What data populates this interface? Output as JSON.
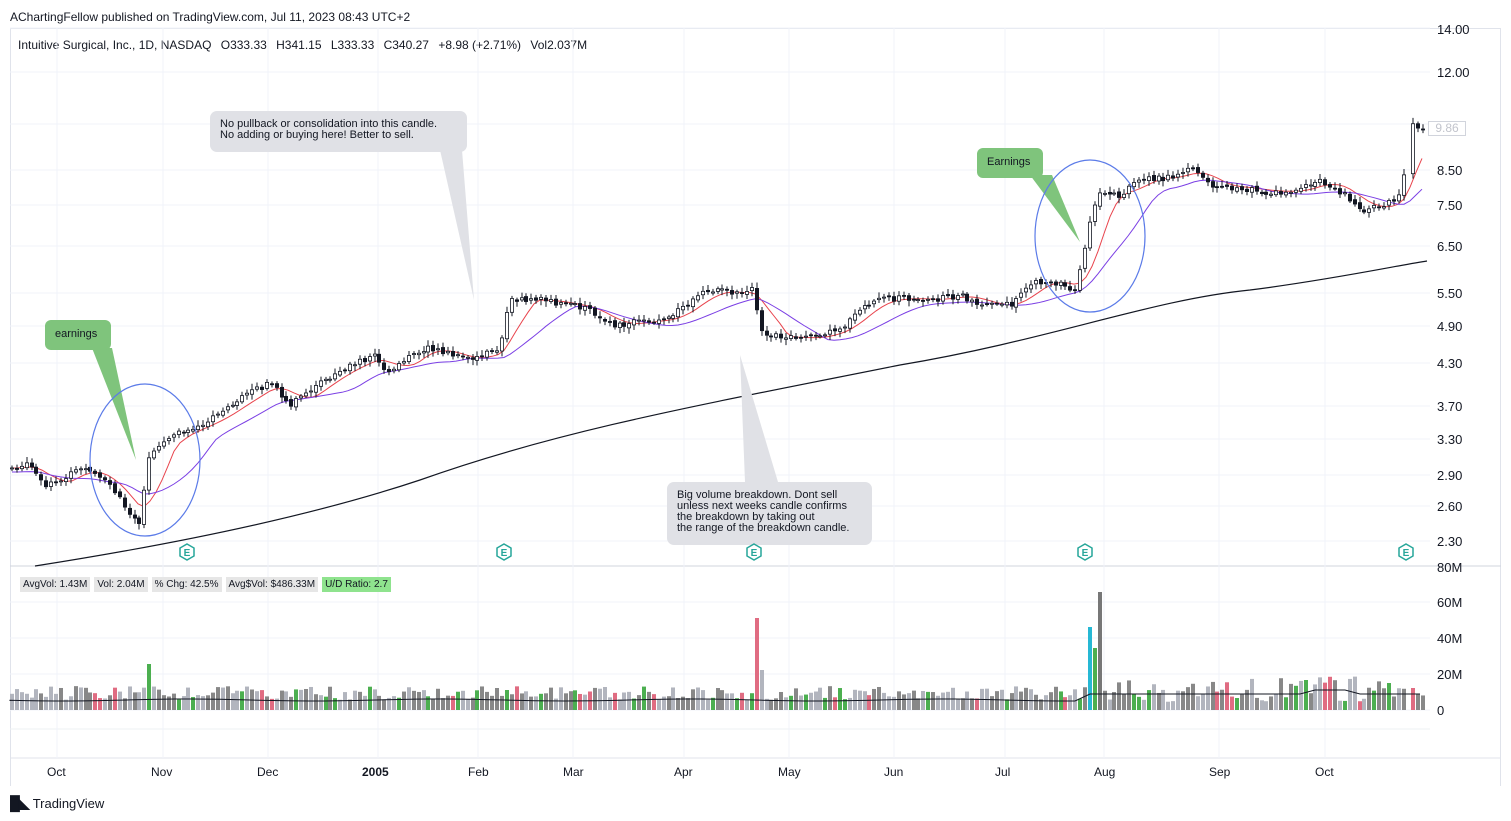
{
  "publisher_line": "AChartingFellow published on TradingView.com, Jul 11, 2023 08:43 UTC+2",
  "symbol": {
    "name": "Intuitive Surgical, Inc., 1D, NASDAQ",
    "open": "O333.33",
    "high": "H341.15",
    "low": "L333.33",
    "close": "C340.27",
    "change": "+8.98 (+2.71%)",
    "volume": "Vol2.037M"
  },
  "price_axis": [
    "14.00",
    "12.00",
    "8.50",
    "7.50",
    "6.50",
    "5.50",
    "4.90",
    "4.30",
    "3.70",
    "3.30",
    "2.90",
    "2.60",
    "2.30"
  ],
  "last_price_tag": "9.86",
  "volume_axis": [
    "80M",
    "60M",
    "40M",
    "20M",
    "0"
  ],
  "time_axis": [
    {
      "label": "Oct",
      "bold": false
    },
    {
      "label": "Nov",
      "bold": false
    },
    {
      "label": "Dec",
      "bold": false
    },
    {
      "label": "2005",
      "bold": true
    },
    {
      "label": "Feb",
      "bold": false
    },
    {
      "label": "Mar",
      "bold": false
    },
    {
      "label": "Apr",
      "bold": false
    },
    {
      "label": "May",
      "bold": false
    },
    {
      "label": "Jun",
      "bold": false
    },
    {
      "label": "Jul",
      "bold": false
    },
    {
      "label": "Aug",
      "bold": false
    },
    {
      "label": "Sep",
      "bold": false
    },
    {
      "label": "Oct",
      "bold": false
    }
  ],
  "annotations": {
    "no_pullback": "No pullback or consolidation into this candle.\nNo adding or buying here! Better to sell.",
    "big_volume": "Big volume breakdown. Dont sell\nunless next weeks candle confirms\nthe breakdown by taking out\nthe range of the breakdown candle.",
    "earnings_lower": "earnings",
    "earnings_upper": "Earnings"
  },
  "earnings_marker": "E",
  "stats": {
    "avgvol": "AvgVol: 1.43M",
    "vol": "Vol: 2.04M",
    "pct_chg": "% Chg: 42.5%",
    "avg_dollar_vol": "Avg$Vol: $486.33M",
    "ud_ratio": "U/D Ratio: 2.7"
  },
  "brand": "TradingView",
  "colors": {
    "up_candle": "#ffffff",
    "down_candle": "#131722",
    "ma_fast": "#e8434c",
    "ma_mid": "#7b3fe4",
    "ma_slow": "#131722",
    "vol_up": "#4caf50",
    "vol_down": "#e06c82",
    "vol_neutral": "#b2b5be",
    "vol_highlight": "#26b8d4",
    "circle": "#5b7be8",
    "earnings": "#26a69a"
  }
}
